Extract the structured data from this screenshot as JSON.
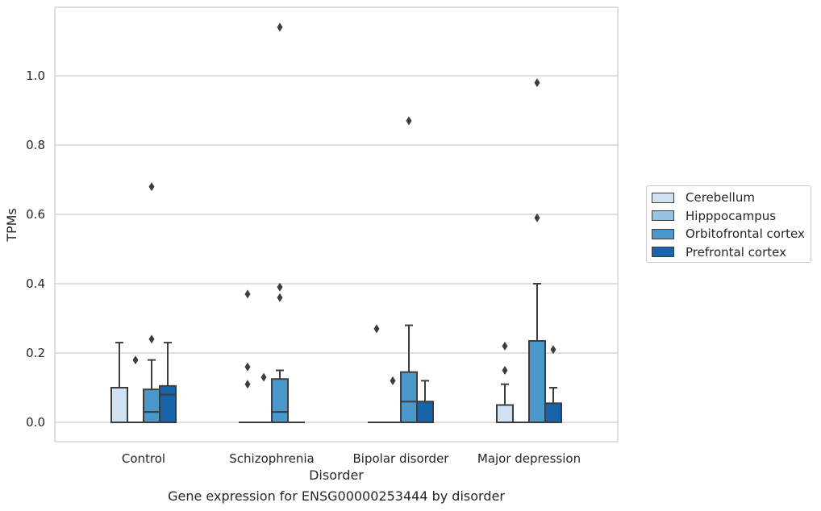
{
  "chart_data": {
    "type": "box",
    "title": "",
    "caption": "Gene expression for ENSG00000253444 by disorder",
    "xlabel": "Disorder",
    "ylabel": "TPMs",
    "ylim": [
      -0.055,
      1.2
    ],
    "yticks": [
      0.0,
      0.2,
      0.4,
      0.6,
      0.8,
      1.0
    ],
    "ytick_labels": [
      "0.0",
      "0.2",
      "0.4",
      "0.6",
      "0.8",
      "1.0"
    ],
    "categories": [
      "Control",
      "Schizophrenia",
      "Bipolar disorder",
      "Major depression"
    ],
    "grid": "horizontal",
    "legend_position": "right",
    "series": [
      {
        "name": "Cerebellum",
        "color": "#d0e1f2",
        "boxes": [
          {
            "q1": 0.0,
            "median": 0.0,
            "q3": 0.1,
            "whisker_low": 0.0,
            "whisker_high": 0.23,
            "outliers": []
          },
          {
            "q1": 0.0,
            "median": 0.0,
            "q3": 0.0,
            "whisker_low": 0.0,
            "whisker_high": 0.0,
            "outliers": [
              0.37,
              0.16,
              0.11
            ]
          },
          {
            "q1": 0.0,
            "median": 0.0,
            "q3": 0.0,
            "whisker_low": 0.0,
            "whisker_high": 0.0,
            "outliers": [
              0.27
            ]
          },
          {
            "q1": 0.0,
            "median": 0.0,
            "q3": 0.05,
            "whisker_low": 0.0,
            "whisker_high": 0.11,
            "outliers": [
              0.22,
              0.15
            ]
          }
        ]
      },
      {
        "name": "Hipppocampus",
        "color": "#94c4df",
        "boxes": [
          {
            "q1": 0.0,
            "median": 0.0,
            "q3": 0.0,
            "whisker_low": 0.0,
            "whisker_high": 0.0,
            "outliers": [
              0.18
            ]
          },
          {
            "q1": 0.0,
            "median": 0.0,
            "q3": 0.0,
            "whisker_low": 0.0,
            "whisker_high": 0.0,
            "outliers": [
              0.13
            ]
          },
          {
            "q1": 0.0,
            "median": 0.0,
            "q3": 0.0,
            "whisker_low": 0.0,
            "whisker_high": 0.0,
            "outliers": [
              0.12
            ]
          },
          {
            "q1": 0.0,
            "median": 0.0,
            "q3": 0.0,
            "whisker_low": 0.0,
            "whisker_high": 0.0,
            "outliers": []
          }
        ]
      },
      {
        "name": "Orbitofrontal cortex",
        "color": "#4a98c9",
        "boxes": [
          {
            "q1": 0.0,
            "median": 0.03,
            "q3": 0.095,
            "whisker_low": 0.0,
            "whisker_high": 0.18,
            "outliers": [
              0.68,
              0.24
            ]
          },
          {
            "q1": 0.0,
            "median": 0.03,
            "q3": 0.125,
            "whisker_low": 0.0,
            "whisker_high": 0.15,
            "outliers": [
              1.14,
              0.39,
              0.36
            ]
          },
          {
            "q1": 0.0,
            "median": 0.06,
            "q3": 0.145,
            "whisker_low": 0.0,
            "whisker_high": 0.28,
            "outliers": [
              0.87
            ]
          },
          {
            "q1": 0.0,
            "median": 0.0,
            "q3": 0.235,
            "whisker_low": 0.0,
            "whisker_high": 0.4,
            "outliers": [
              0.98,
              0.59
            ]
          }
        ]
      },
      {
        "name": "Prefrontal cortex",
        "color": "#1764ab",
        "boxes": [
          {
            "q1": 0.0,
            "median": 0.08,
            "q3": 0.105,
            "whisker_low": 0.0,
            "whisker_high": 0.23,
            "outliers": []
          },
          {
            "q1": 0.0,
            "median": 0.0,
            "q3": 0.0,
            "whisker_low": 0.0,
            "whisker_high": 0.0,
            "outliers": []
          },
          {
            "q1": 0.0,
            "median": 0.0,
            "q3": 0.06,
            "whisker_low": 0.0,
            "whisker_high": 0.12,
            "outliers": []
          },
          {
            "q1": 0.0,
            "median": 0.0,
            "q3": 0.055,
            "whisker_low": 0.0,
            "whisker_high": 0.1,
            "outliers": [
              0.21
            ]
          }
        ]
      }
    ],
    "colors": {
      "box_edge": "#3d3d3d",
      "grid": "#cccccc",
      "axes_edge": "#cccccc"
    }
  }
}
